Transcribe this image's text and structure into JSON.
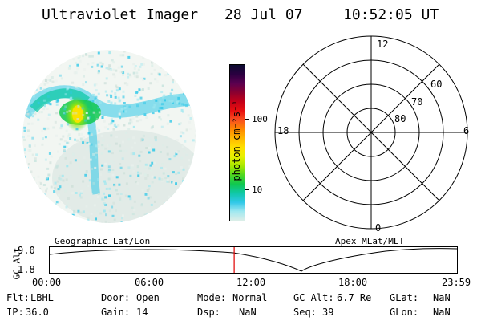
{
  "header": {
    "title": "Ultraviolet Imager",
    "date": "28 Jul 07",
    "time": "10:52:05 UT"
  },
  "colorbar": {
    "unit": "photon cm⁻²s⁻¹",
    "ticks": [
      "100",
      "10"
    ],
    "colors": [
      "#0c0c30",
      "#2a0040",
      "#5a0050",
      "#8a0030",
      "#c40018",
      "#e81010",
      "#f85020",
      "#ff8800",
      "#ffb800",
      "#ffe000",
      "#e8f000",
      "#a8e800",
      "#50d820",
      "#10c850",
      "#10c8a8",
      "#30c8e8",
      "#a0e8f0",
      "#dceee8"
    ]
  },
  "polar_plot": {
    "mlt_labels": {
      "top": "12",
      "left": "18",
      "right": "6",
      "bottom": "0"
    },
    "lat_labels": [
      "60",
      "70",
      "80"
    ]
  },
  "timeline": {
    "ylabel": "GC Alt",
    "yticks": [
      "9.0",
      "1.8"
    ],
    "left_title": "Geographic Lat/Lon",
    "right_title": "Apex MLat/MLT",
    "xticks": [
      "00:00",
      "06:00",
      "12:00",
      "18:00",
      "23:59"
    ],
    "current_time_hours": 10.868,
    "marker_color": "#e00000"
  },
  "info": {
    "filter_label": "Flt:",
    "filter_value": "LBHL",
    "ip_label": "IP:",
    "ip_value": "36.0",
    "door_label": "Door:",
    "door_value": "Open",
    "gain_label": "Gain:",
    "gain_value": "14",
    "mode_label": "Mode:",
    "mode_value": "Normal",
    "dsp_label": "Dsp:",
    "dsp_value": "NaN",
    "gcalt_label": "GC Alt:",
    "gcalt_value": "6.7 Re",
    "seq_label": "Seq:",
    "seq_value": "39",
    "glat_label": "GLat:",
    "glat_value": "NaN",
    "glon_label": "GLon:",
    "glon_value": "NaN"
  }
}
